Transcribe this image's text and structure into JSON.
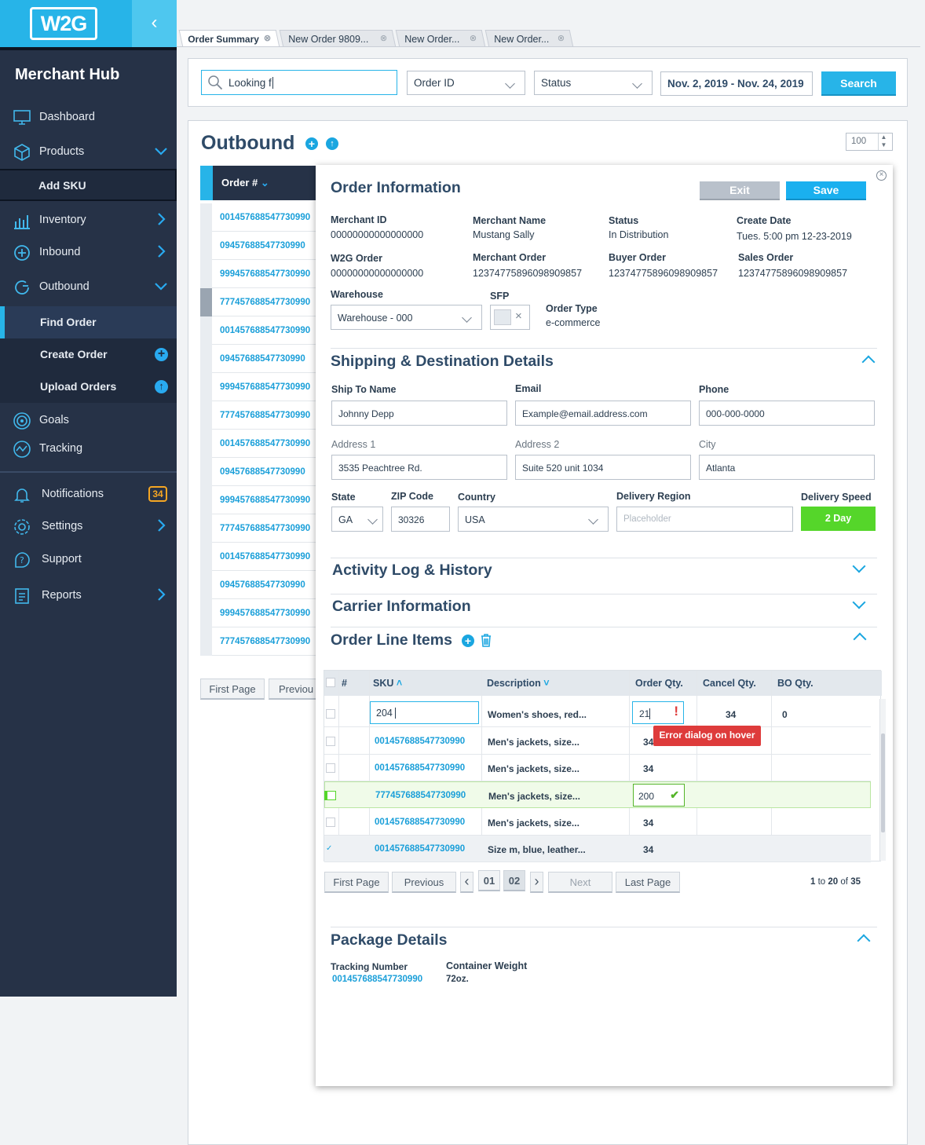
{
  "brand": {
    "logo": "W2G",
    "hub_title": "Merchant Hub"
  },
  "sidebar": {
    "items": [
      {
        "label": "Dashboard",
        "icon": "monitor-icon"
      },
      {
        "label": "Products",
        "icon": "box-icon"
      },
      {
        "label": "Add SKU"
      },
      {
        "label": "Inventory",
        "icon": "bar-chart-icon"
      },
      {
        "label": "Inbound",
        "icon": "plus-circle-icon"
      },
      {
        "label": "Outbound",
        "icon": "refresh-icon"
      },
      {
        "label": "Find Order"
      },
      {
        "label": "Create Order"
      },
      {
        "label": "Upload Orders"
      },
      {
        "label": "Goals",
        "icon": "target-icon"
      },
      {
        "label": "Tracking",
        "icon": "tracking-icon"
      },
      {
        "label": "Notifications",
        "icon": "bell-icon",
        "badge": "34"
      },
      {
        "label": "Settings",
        "icon": "gear-icon"
      },
      {
        "label": "Support",
        "icon": "help-icon"
      },
      {
        "label": "Reports",
        "icon": "report-icon"
      }
    ]
  },
  "tabs": [
    {
      "label": "Order Summary"
    },
    {
      "label": "New Order 9809..."
    },
    {
      "label": "New Order..."
    },
    {
      "label": "New Order..."
    }
  ],
  "search": {
    "query": "Looking f",
    "order_id_select": "Order ID",
    "status_select": "Status",
    "date_range": "Nov. 2, 2019 - Nov. 24, 2019",
    "button": "Search"
  },
  "outbound": {
    "title": "Outbound",
    "per_page": "100",
    "list_header": "Order #",
    "orders": [
      "001457688547730990",
      "09457688547730990",
      "999457688547730990",
      "777457688547730990",
      "001457688547730990",
      "09457688547730990",
      "999457688547730990",
      "777457688547730990",
      "001457688547730990",
      "09457688547730990",
      "999457688547730990",
      "777457688547730990",
      "001457688547730990",
      "09457688547730990",
      "999457688547730990",
      "777457688547730990"
    ],
    "pager": {
      "first": "First Page",
      "previous": "Previou"
    }
  },
  "detail": {
    "title": "Order Information",
    "exit": "Exit",
    "save": "Save",
    "info": {
      "merchant_id_label": "Merchant ID",
      "merchant_id": "00000000000000000",
      "merchant_name_label": "Merchant Name",
      "merchant_name": "Mustang Sally",
      "status_label": "Status",
      "status": "In Distribution",
      "create_date_label": "Create Date",
      "create_date": "Tues. 5:00 pm 12-23-2019",
      "w2g_order_label": "W2G Order",
      "w2g_order": "00000000000000000",
      "merchant_order_label": "Merchant Order",
      "merchant_order": "12374775896098909857",
      "buyer_order_label": "Buyer Order",
      "buyer_order": "12374775896098909857",
      "sales_order_label": "Sales Order",
      "sales_order": "12374775896098909857",
      "warehouse_label": "Warehouse",
      "warehouse": "Warehouse - 000",
      "sfp_label": "SFP",
      "order_type_label": "Order Type",
      "order_type": "e-commerce"
    },
    "shipping": {
      "title": "Shipping & Destination Details",
      "ship_to_label": "Ship To Name",
      "ship_to": "Johnny Depp",
      "email_label": "Email",
      "email": "Example@email.address.com",
      "phone_label": "Phone",
      "phone": "000-000-0000",
      "address1_label": "Address 1",
      "address1": "3535 Peachtree Rd.",
      "address2_label": "Address 2",
      "address2": "Suite 520 unit 1034",
      "city_label": "City",
      "city": "Atlanta",
      "state_label": "State",
      "state": "GA",
      "zip_label": "ZIP Code",
      "zip": "30326",
      "country_label": "Country",
      "country": "USA",
      "region_label": "Delivery Region",
      "region_placeholder": "Placeholder",
      "speed_label": "Delivery Speed",
      "speed": "2 Day"
    },
    "activity_title": "Activity Log & History",
    "carrier_title": "Carrier Information",
    "line_items": {
      "title": "Order Line Items",
      "columns": {
        "num": "#",
        "sku": "SKU",
        "desc": "Description",
        "order_qty": "Order Qty.",
        "cancel_qty": "Cancel Qty.",
        "bo_qty": "BO Qty."
      },
      "edit_row": {
        "sku": "204",
        "desc": "Women's shoes, red...",
        "qty": "21",
        "cancel": "34",
        "bo": "0"
      },
      "rows": [
        {
          "sku": "001457688547730990",
          "desc": "Men's jackets, size...",
          "qty": "34"
        },
        {
          "sku": "001457688547730990",
          "desc": "Men's jackets, size...",
          "qty": "34"
        },
        {
          "sku": "777457688547730990",
          "desc": "Men's jackets, size...",
          "qty": "200"
        },
        {
          "sku": "001457688547730990",
          "desc": "Men's jackets, size...",
          "qty": "34"
        },
        {
          "sku": "001457688547730990",
          "desc": "Size m, blue, leather...",
          "qty": "34"
        }
      ],
      "error_tip": "Error dialog on hover",
      "pager": {
        "first": "First Page",
        "previous": "Previous",
        "p1": "01",
        "p2": "02",
        "next": "Next",
        "last": "Last Page"
      },
      "range_from": "1",
      "range_to_word": "to",
      "range_to": "20",
      "range_of_word": "of",
      "range_total": "35"
    },
    "package": {
      "title": "Package Details",
      "tracking_label": "Tracking Number",
      "tracking": "001457688547730990",
      "weight_label": "Container Weight",
      "weight": "72oz."
    }
  },
  "colors": {
    "brand": "#27b4e8",
    "sidebar": "#263247",
    "success": "#55d62a",
    "error": "#de3b3b"
  }
}
